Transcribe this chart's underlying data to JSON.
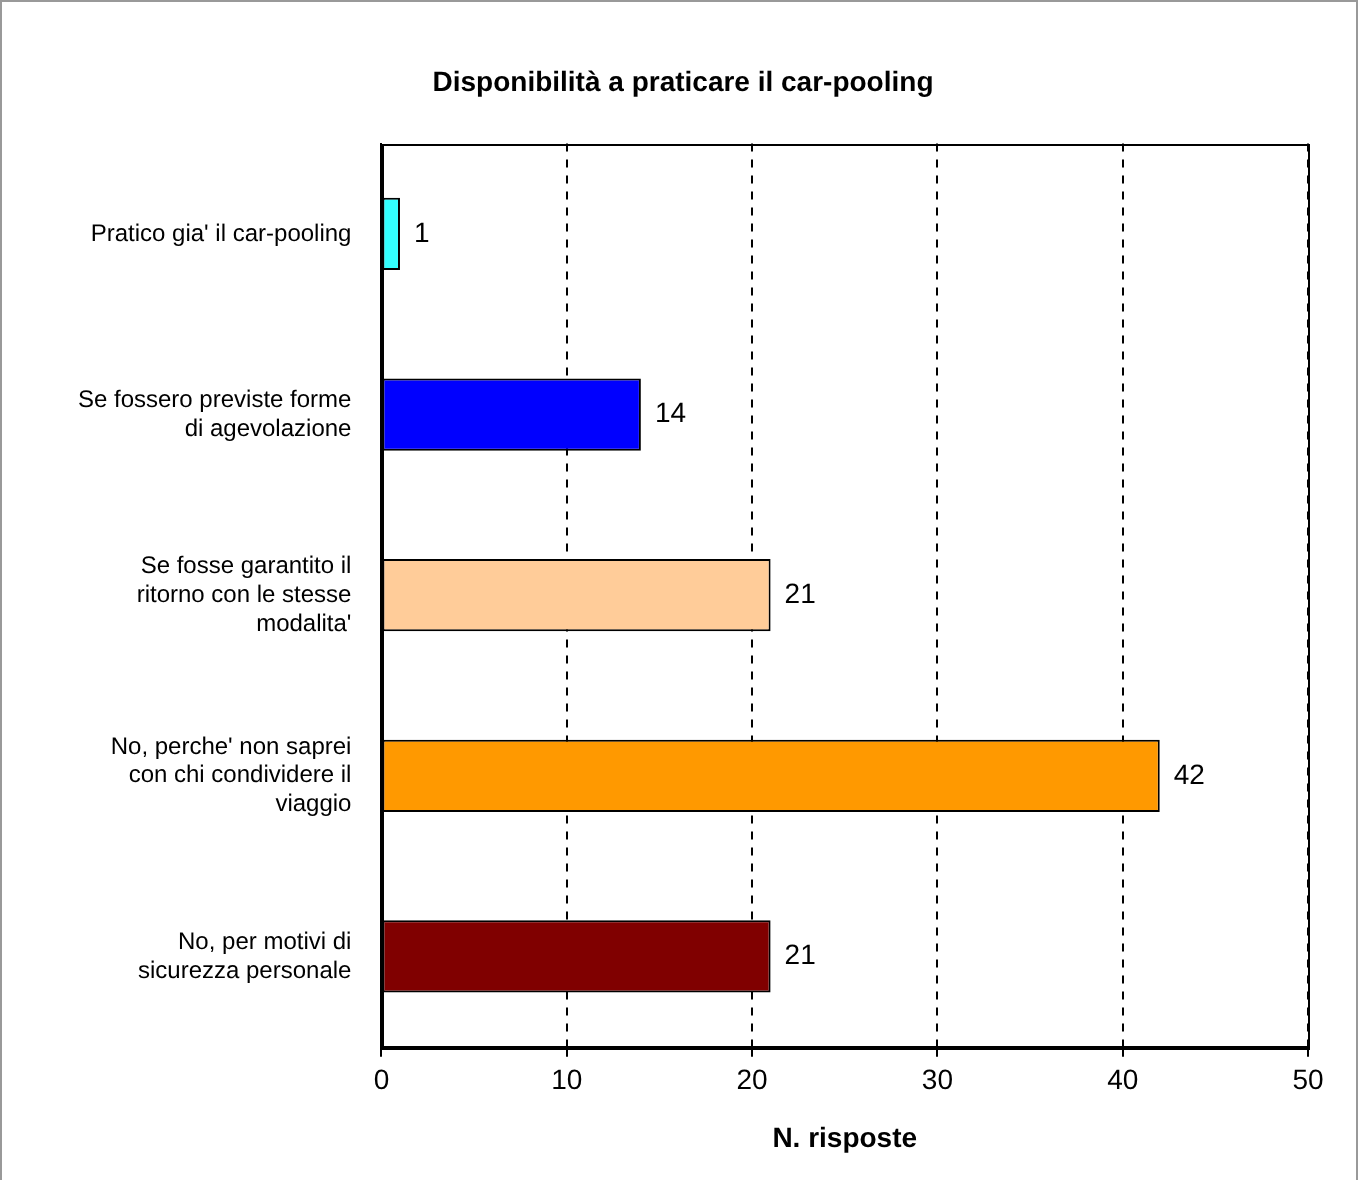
{
  "chart_data": {
    "type": "bar",
    "orientation": "horizontal",
    "title": "Disponibilità a praticare il car-pooling",
    "xlabel": "N. risposte",
    "categories": [
      "Pratico gia' il car-pooling",
      "Se fossero previste forme di agevolazione",
      "Se fosse garantito il ritorno con le stesse modalita'",
      "No, perche' non saprei con chi condividere il viaggio",
      "No, per motivi di sicurezza personale"
    ],
    "values": [
      1,
      14,
      21,
      42,
      21
    ],
    "colors": [
      "#33ffff",
      "#0000ff",
      "#ffcc99",
      "#ff9900",
      "#800000"
    ],
    "xlim": [
      0,
      50
    ],
    "xticks": [
      0,
      10,
      20,
      30,
      40,
      50
    ],
    "grid": "x",
    "data_labels": true,
    "legend": false
  }
}
